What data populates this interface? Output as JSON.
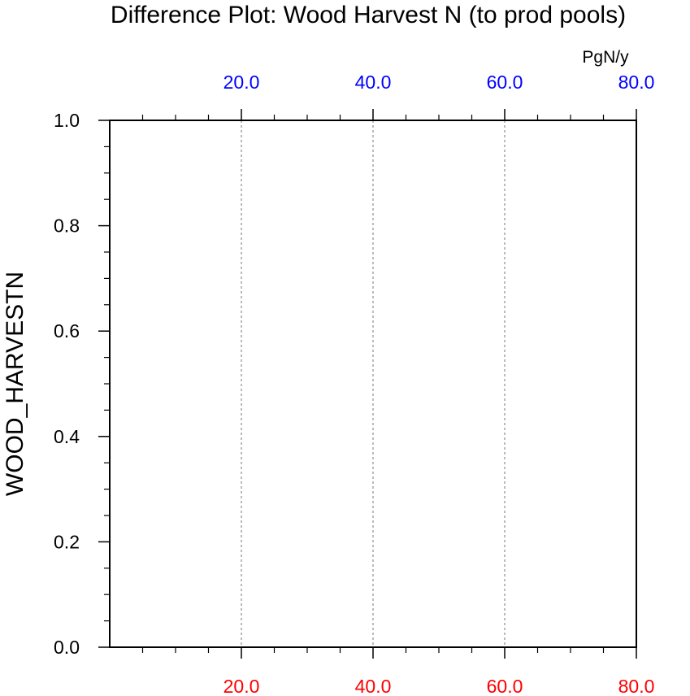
{
  "chart_data": {
    "type": "line",
    "title": "Difference Plot: Wood Harvest N (to prod pools)",
    "units": "PgN/y",
    "ylabel": "WOOD_HARVESTN",
    "xlim": [
      0,
      80
    ],
    "ylim": [
      0,
      1
    ],
    "x_top_ticks": [
      {
        "value": 20,
        "label": "20.0"
      },
      {
        "value": 40,
        "label": "40.0"
      },
      {
        "value": 60,
        "label": "60.0"
      },
      {
        "value": 80,
        "label": "80.0"
      }
    ],
    "x_bottom_ticks": [
      {
        "value": 20,
        "label": "20.0"
      },
      {
        "value": 40,
        "label": "40.0"
      },
      {
        "value": 60,
        "label": "60.0"
      },
      {
        "value": 80,
        "label": "80.0"
      }
    ],
    "x_minor_step": 5,
    "y_ticks": [
      {
        "value": 0.0,
        "label": "0.0"
      },
      {
        "value": 0.2,
        "label": "0.2"
      },
      {
        "value": 0.4,
        "label": "0.4"
      },
      {
        "value": 0.6,
        "label": "0.6"
      },
      {
        "value": 0.8,
        "label": "0.8"
      },
      {
        "value": 1.0,
        "label": "1.0"
      }
    ],
    "y_minor_step": 0.05,
    "gridlines_x": [
      20,
      40,
      60
    ],
    "series": [],
    "colors": {
      "top_axis_labels": "#0000ff",
      "bottom_axis_labels": "#ff0000",
      "left_axis_labels": "#000000",
      "grid": "#777777",
      "frame": "#000000"
    }
  }
}
